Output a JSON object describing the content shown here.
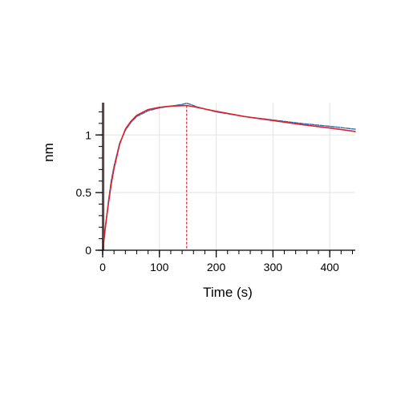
{
  "chart_data": {
    "type": "line",
    "title": "",
    "xlabel": "Time (s)",
    "ylabel": "nm",
    "xlim": [
      0,
      445
    ],
    "ylim": [
      0,
      1.28
    ],
    "x_ticks": [
      0,
      100,
      200,
      300,
      400
    ],
    "x_tick_labels": [
      "0",
      "100",
      "200",
      "300",
      "400"
    ],
    "x_minor_step": 20,
    "y_ticks": [
      0,
      0.5,
      1
    ],
    "y_tick_labels": [
      "0",
      "0.5",
      "1"
    ],
    "y_minor_step": 0.1,
    "grid": true,
    "legend": "none",
    "vline_x": 148,
    "colors": {
      "data": "#2f6db3",
      "fit": "#e0202a",
      "grid": "#e3e3e3",
      "axis": "#000000",
      "zero_line": "#a03030"
    },
    "series": [
      {
        "role": "data",
        "color": "#2f6db3",
        "x": [
          0,
          2,
          5,
          10,
          15,
          20,
          30,
          40,
          50,
          60,
          80,
          100,
          120,
          140,
          148,
          155,
          165,
          180,
          200,
          250,
          300,
          350,
          400,
          445
        ],
        "y": [
          0.0,
          0.07,
          0.2,
          0.42,
          0.6,
          0.73,
          0.93,
          1.04,
          1.11,
          1.16,
          1.21,
          1.235,
          1.25,
          1.265,
          1.275,
          1.265,
          1.245,
          1.225,
          1.2,
          1.16,
          1.13,
          1.1,
          1.075,
          1.05
        ]
      },
      {
        "role": "fit",
        "color": "#e0202a",
        "x": [
          0,
          2,
          5,
          10,
          15,
          20,
          30,
          40,
          50,
          60,
          80,
          100,
          120,
          148,
          160,
          180,
          200,
          250,
          300,
          350,
          400,
          445
        ],
        "y": [
          0.02,
          0.08,
          0.21,
          0.4,
          0.57,
          0.71,
          0.92,
          1.05,
          1.12,
          1.17,
          1.22,
          1.24,
          1.25,
          1.255,
          1.245,
          1.225,
          1.205,
          1.16,
          1.125,
          1.09,
          1.06,
          1.03
        ]
      }
    ]
  }
}
